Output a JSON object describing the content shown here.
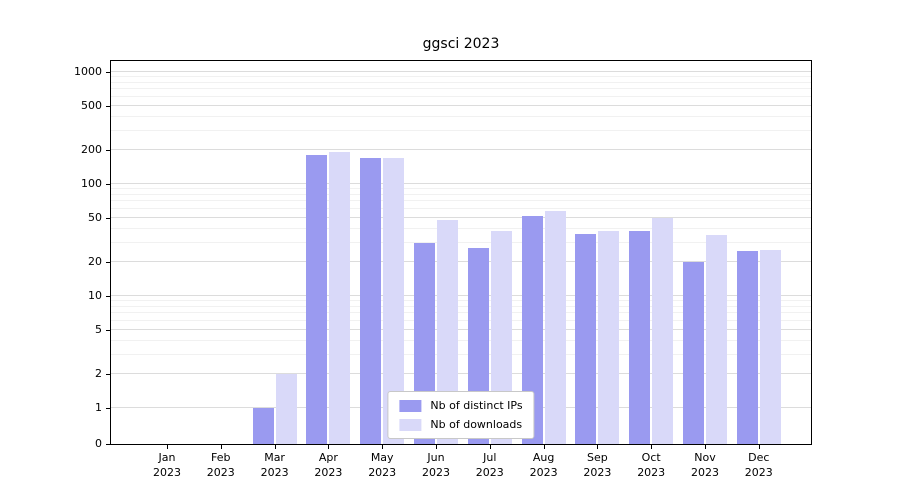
{
  "chart_data": {
    "type": "bar",
    "title": "ggsci 2023",
    "categories": [
      "Jan 2023",
      "Feb 2023",
      "Mar 2023",
      "Apr 2023",
      "May 2023",
      "Jun 2023",
      "Jul 2023",
      "Aug 2023",
      "Sep 2023",
      "Oct 2023",
      "Nov 2023",
      "Dec 2023"
    ],
    "series": [
      {
        "name": "Nb of distinct IPs",
        "color": "#9a9af0",
        "values": [
          0,
          0,
          1,
          180,
          170,
          30,
          27,
          52,
          36,
          38,
          20,
          25
        ]
      },
      {
        "name": "Nb of downloads",
        "color": "#d9d9f9",
        "values": [
          0,
          0,
          2,
          192,
          170,
          48,
          38,
          57,
          38,
          50,
          35,
          26
        ]
      }
    ],
    "yscale": "symlog",
    "y_ticks": [
      0,
      1,
      2,
      5,
      10,
      20,
      50,
      100,
      200,
      500,
      1000
    ],
    "ylim": [
      0,
      1300
    ],
    "xlabel": "",
    "ylabel": "",
    "grid": true,
    "legend_position": "lower center"
  },
  "colors": {
    "distinct_ips": "#9a9af0",
    "downloads": "#d9d9f9",
    "grid_major": "#dcdcdc",
    "grid_minor": "#f1f1f1",
    "axis": "#000000",
    "legend_border": "#c8c8c8",
    "background": "#ffffff"
  }
}
